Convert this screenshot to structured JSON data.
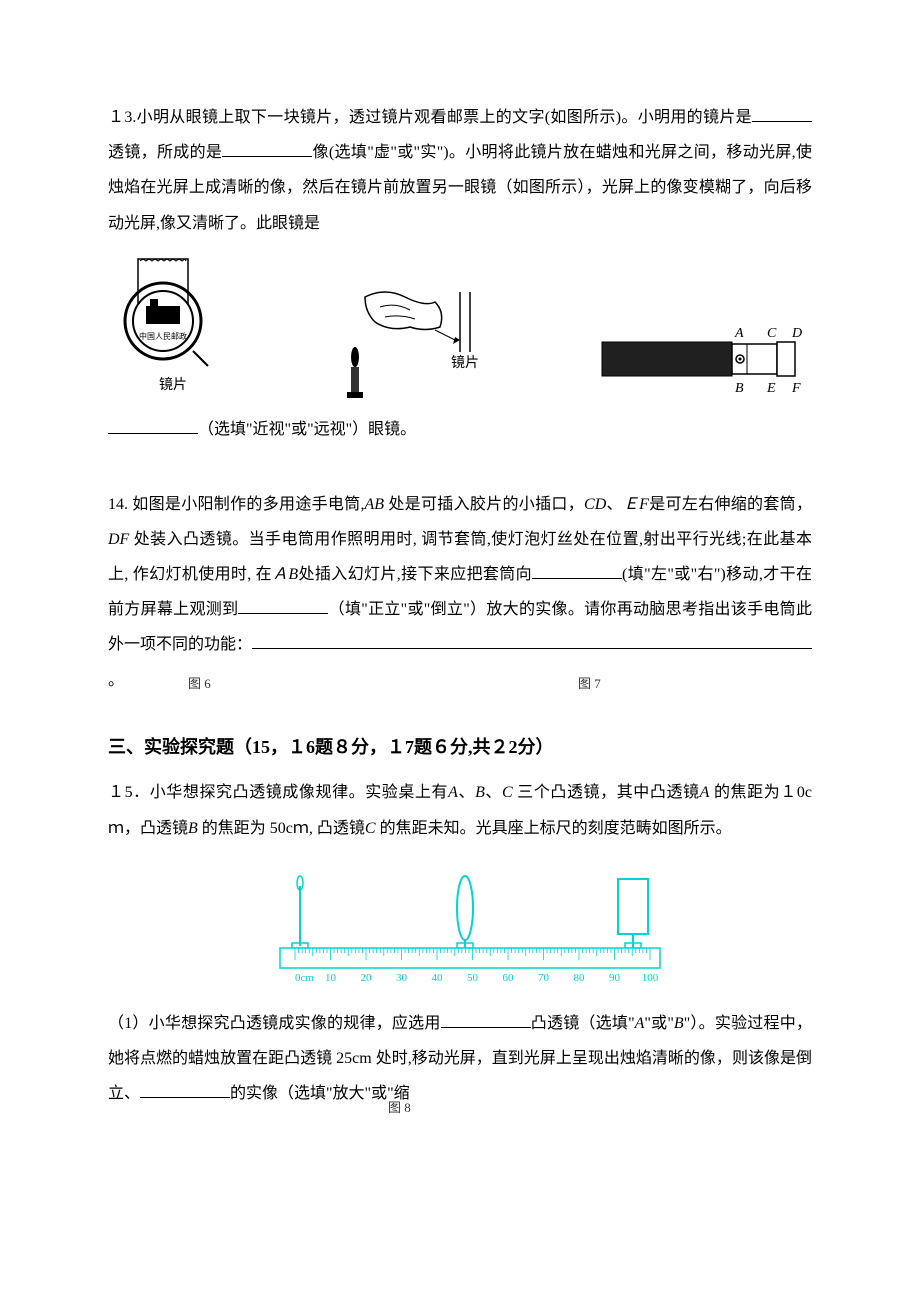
{
  "q13": {
    "prefix": "１3.小明从眼镜上取下一块镜片，透过镜片观看邮票上的文字(如图所示)。小明用的镜片是",
    "mid1": "透镜，所成的是",
    "mid2": "像(选填\"虚\"或\"实\")。小明将此镜片放在蜡烛和光屏之间，移动光屏,使烛焰在光屏上成清晰的像，然后在镜片前放置另一眼镜（如图所示），光屏上的像变模糊了，向后移动光屏,像又清晰了。此眼镜是",
    "suffix": "（选填\"近视\"或\"远视\"）眼镜。",
    "lens_label_left": "镜片",
    "lens_label_mid": "镜片",
    "flashlight_labels": {
      "A": "A",
      "B": "B",
      "C": "C",
      "D": "D",
      "E": "E",
      "F": "F"
    },
    "fig6_label": "图 6",
    "fig7_label": "图 7"
  },
  "q14": {
    "line1_a": "14. 如图是小阳制作的多用途手电筒,",
    "line1_b": " 处是可插入胶片的小插口，",
    "line1_c": "、",
    "line1_d": "是可左右伸缩的套筒，",
    "line1_e": " 处装入凸透镜。当手电筒用作照明用时, 调节套筒,使灯泡灯丝处在位置,射出平行光线;在此基本上, 作幻灯机使用时, 在",
    "line1_f": "处插入幻灯片,接下来应把套筒向",
    "mid1": "(填\"左\"或\"右\")移动,才干在前方屏幕上观测到",
    "mid2": "（填\"正立\"或\"倒立\"）放大的实像。请你再动脑思考指出该手电筒此外一项不同的功能：",
    "suffix": "。",
    "AB": "AB",
    "CD": "CD",
    "EF": "ＥF",
    "DF": "DF",
    "AB2": "ＡB"
  },
  "section3": {
    "header": "三、实验探究题（15，１6题８分，１7题６分,共２2分）",
    "q15_intro_a": "１5．小华想探究凸透镜成像规律。实验桌上有",
    "q15_intro_b": "、",
    "q15_intro_c": "、",
    "q15_intro_d": " 三个凸透镜，其中凸透镜",
    "q15_intro_e": " 的焦距为１0cｍ，凸透镜",
    "q15_intro_f": " 的焦距为 50cｍ, 凸透镜",
    "q15_intro_g": " 的焦距未知。光具座上标尺的刻度范畴如图所示。",
    "A": "A",
    "B": "B",
    "C": "C",
    "q15_1_a": "（1）小华想探究凸透镜成实像的规律，应选用",
    "q15_1_b": "凸透镜（选填\"",
    "q15_1_c": "\"或\"",
    "q15_1_d": "\"）。实验过程中，她将点燃的蜡烛放置在距凸透镜 25cm 处时,移动光屏，直到光屏上呈现出烛焰清晰的像，则该像是倒立、",
    "q15_1_e": "的实像（选填\"放大\"或\"缩",
    "fig8_label": "图 8"
  },
  "ruler": {
    "ticks": [
      "0cm",
      "10",
      "20",
      "30",
      "40",
      "50",
      "60",
      "70",
      "80",
      "90",
      "100"
    ],
    "stroke": "#00d4d4",
    "fill": "#ffffff"
  },
  "colors": {
    "text": "#000000",
    "bg": "#ffffff",
    "ruler_cyan": "#00d4d4"
  }
}
